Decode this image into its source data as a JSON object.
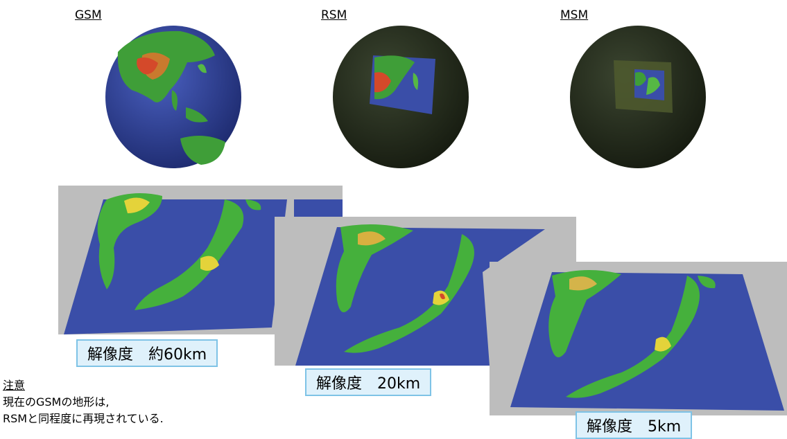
{
  "models": [
    {
      "name": "GSM",
      "resolution": "解像度　約60km"
    },
    {
      "name": "RSM",
      "resolution": "解像度　20km"
    },
    {
      "name": "MSM",
      "resolution": "解像度　5km"
    }
  ],
  "note": {
    "title": "注意",
    "lines": [
      "現在のGSMの地形は,",
      "RSMと同程度に再現されている."
    ]
  },
  "colors": {
    "ocean": "#3a4ea8",
    "dark_globe": "#2b3320",
    "land_green": "#45b03c",
    "land_yellow": "#e4d33a",
    "land_red": "#d4492a",
    "panel_gray": "#bdbdbd",
    "badge_fill": "#dff1fb",
    "badge_border": "#7ec3e6"
  }
}
